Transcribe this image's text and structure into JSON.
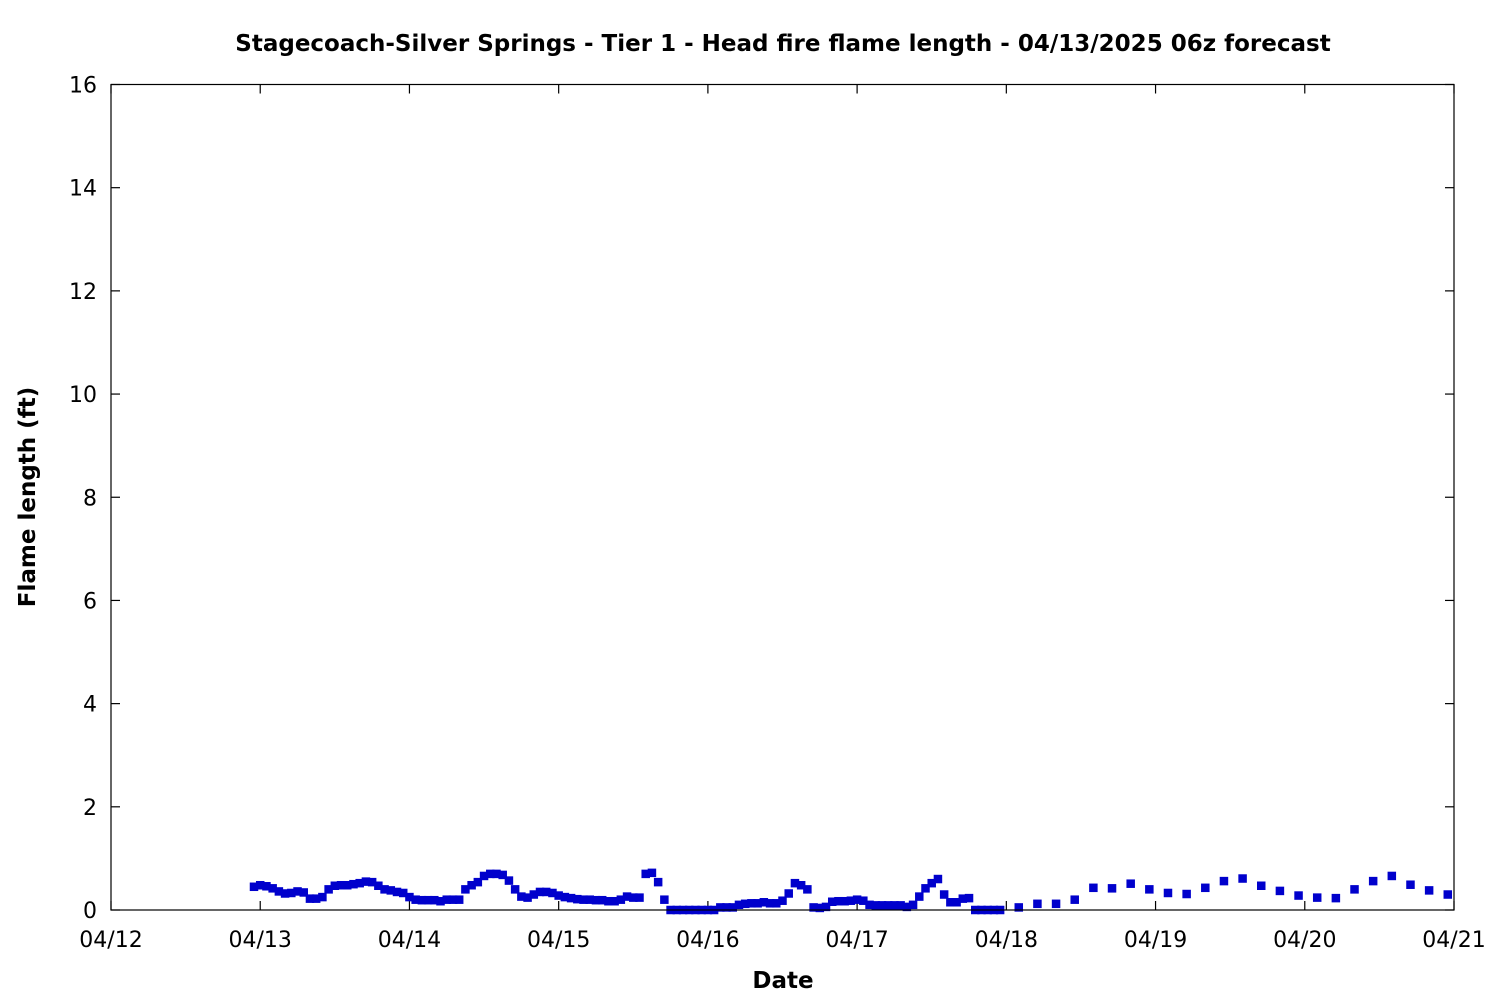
{
  "chart_data": {
    "type": "scatter",
    "title": "Stagecoach-Silver Springs - Tier 1 - Head fire flame length - 04/13/2025 06z forecast",
    "xlabel": "Date",
    "ylabel": "Flame length (ft)",
    "xlim": [
      "04/12 00:00",
      "04/21 00:00"
    ],
    "ylim": [
      0,
      16
    ],
    "x_ticks": [
      "04/12",
      "04/13",
      "04/14",
      "04/15",
      "04/16",
      "04/17",
      "04/18",
      "04/19",
      "04/20",
      "04/21"
    ],
    "y_ticks": [
      "0",
      "2",
      "4",
      "6",
      "8",
      "10",
      "12",
      "14",
      "16"
    ],
    "grid": false,
    "marker": "square",
    "marker_color": "#0000cc",
    "series": [
      {
        "x": [
          "04/12 23:00",
          "04/13 00:00",
          "04/13 01:00",
          "04/13 02:00",
          "04/13 03:00",
          "04/13 04:00",
          "04/13 05:00",
          "04/13 06:00",
          "04/13 07:00",
          "04/13 08:00",
          "04/13 09:00",
          "04/13 10:00",
          "04/13 11:00",
          "04/13 12:00",
          "04/13 13:00",
          "04/13 14:00",
          "04/13 15:00",
          "04/13 16:00",
          "04/13 17:00",
          "04/13 18:00",
          "04/13 19:00",
          "04/13 20:00",
          "04/13 21:00",
          "04/13 22:00",
          "04/13 23:00",
          "04/14 00:00",
          "04/14 01:00",
          "04/14 02:00",
          "04/14 03:00",
          "04/14 04:00",
          "04/14 05:00",
          "04/14 06:00",
          "04/14 07:00",
          "04/14 08:00",
          "04/14 09:00",
          "04/14 10:00",
          "04/14 11:00",
          "04/14 12:00",
          "04/14 13:00",
          "04/14 14:00",
          "04/14 15:00",
          "04/14 16:00",
          "04/14 17:00",
          "04/14 18:00",
          "04/14 19:00",
          "04/14 20:00",
          "04/14 21:00",
          "04/14 22:00",
          "04/14 23:00",
          "04/15 00:00",
          "04/15 01:00",
          "04/15 02:00",
          "04/15 03:00",
          "04/15 04:00",
          "04/15 05:00",
          "04/15 06:00",
          "04/15 07:00",
          "04/15 08:00",
          "04/15 09:00",
          "04/15 10:00",
          "04/15 11:00",
          "04/15 12:00",
          "04/15 13:00",
          "04/15 14:00",
          "04/15 15:00",
          "04/15 16:00",
          "04/15 17:00",
          "04/15 18:00",
          "04/15 19:00",
          "04/15 20:00",
          "04/15 21:00",
          "04/15 22:00",
          "04/15 23:00",
          "04/16 00:00",
          "04/16 01:00",
          "04/16 02:00",
          "04/16 03:00",
          "04/16 04:00",
          "04/16 05:00",
          "04/16 06:00",
          "04/16 07:00",
          "04/16 08:00",
          "04/16 09:00",
          "04/16 10:00",
          "04/16 11:00",
          "04/16 12:00",
          "04/16 13:00",
          "04/16 14:00",
          "04/16 15:00",
          "04/16 16:00",
          "04/16 17:00",
          "04/16 18:00",
          "04/16 19:00",
          "04/16 20:00",
          "04/16 21:00",
          "04/16 22:00",
          "04/16 23:00",
          "04/17 00:00",
          "04/17 01:00",
          "04/17 02:00",
          "04/17 03:00",
          "04/17 04:00",
          "04/17 05:00",
          "04/17 06:00",
          "04/17 07:00",
          "04/17 08:00",
          "04/17 09:00",
          "04/17 10:00",
          "04/17 11:00",
          "04/17 12:00",
          "04/17 13:00",
          "04/17 14:00",
          "04/17 15:00",
          "04/17 16:00",
          "04/17 17:00",
          "04/17 18:00",
          "04/17 19:00",
          "04/17 20:00",
          "04/17 21:00",
          "04/17 22:00",
          "04/17 23:00",
          "04/18 02:00",
          "04/18 05:00",
          "04/18 08:00",
          "04/18 11:00",
          "04/18 14:00",
          "04/18 17:00",
          "04/18 20:00",
          "04/18 23:00",
          "04/19 02:00",
          "04/19 05:00",
          "04/19 08:00",
          "04/19 11:00",
          "04/19 14:00",
          "04/19 17:00",
          "04/19 20:00",
          "04/19 23:00",
          "04/20 02:00",
          "04/20 05:00",
          "04/20 08:00",
          "04/20 11:00",
          "04/20 14:00",
          "04/20 17:00",
          "04/20 20:00",
          "04/20 23:00"
        ],
        "y": [
          0.45,
          0.48,
          0.46,
          0.42,
          0.36,
          0.32,
          0.33,
          0.36,
          0.34,
          0.22,
          0.22,
          0.25,
          0.4,
          0.47,
          0.48,
          0.48,
          0.5,
          0.52,
          0.55,
          0.54,
          0.47,
          0.4,
          0.38,
          0.35,
          0.33,
          0.25,
          0.2,
          0.19,
          0.19,
          0.19,
          0.17,
          0.2,
          0.2,
          0.2,
          0.4,
          0.48,
          0.54,
          0.66,
          0.7,
          0.7,
          0.68,
          0.57,
          0.4,
          0.26,
          0.24,
          0.3,
          0.35,
          0.35,
          0.33,
          0.28,
          0.25,
          0.23,
          0.21,
          0.2,
          0.2,
          0.19,
          0.19,
          0.17,
          0.17,
          0.2,
          0.26,
          0.24,
          0.24,
          0.7,
          0.72,
          0.54,
          0.2,
          0.0,
          0.0,
          0.0,
          0.0,
          0.0,
          0.0,
          0.0,
          0.0,
          0.05,
          0.05,
          0.05,
          0.1,
          0.12,
          0.13,
          0.13,
          0.15,
          0.13,
          0.13,
          0.18,
          0.32,
          0.52,
          0.48,
          0.4,
          0.05,
          0.04,
          0.06,
          0.16,
          0.17,
          0.17,
          0.18,
          0.2,
          0.18,
          0.1,
          0.09,
          0.09,
          0.09,
          0.09,
          0.09,
          0.06,
          0.1,
          0.26,
          0.42,
          0.52,
          0.6,
          0.3,
          0.15,
          0.15,
          0.22,
          0.23,
          0.0,
          0.0,
          0.0,
          0.0,
          0.0,
          0.05,
          0.12,
          0.12,
          0.2,
          0.43,
          0.42,
          0.51,
          0.4,
          0.33,
          0.31,
          0.43,
          0.56,
          0.61,
          0.47,
          0.37,
          0.28,
          0.24,
          0.23,
          0.4,
          0.56,
          0.66,
          0.49,
          0.38,
          0.3
        ]
      }
    ]
  }
}
